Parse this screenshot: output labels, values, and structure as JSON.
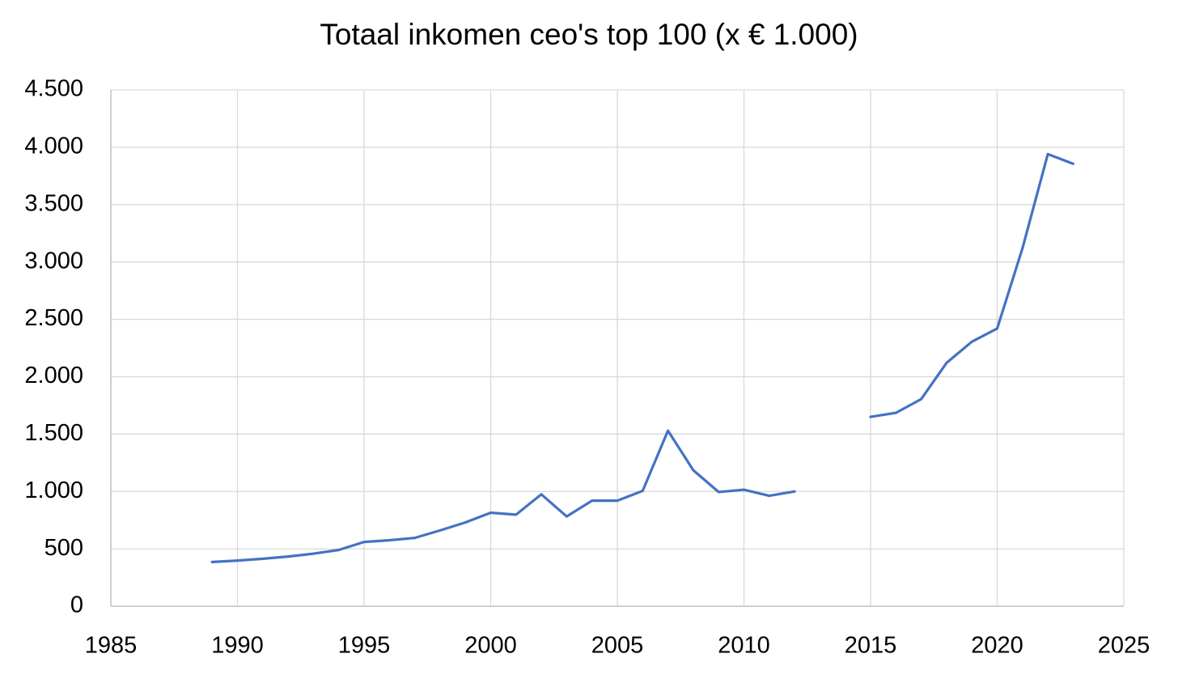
{
  "chart_data": {
    "type": "line",
    "title": "Totaal inkomen ceo's top 100 (x € 1.000)",
    "xlabel": "",
    "ylabel": "",
    "xlim": [
      1985,
      2025
    ],
    "ylim": [
      0,
      4500
    ],
    "x_ticks": [
      1985,
      1990,
      1995,
      2000,
      2005,
      2010,
      2015,
      2020,
      2025
    ],
    "x_tick_labels": [
      "1985",
      "1990",
      "1995",
      "2000",
      "2005",
      "2010",
      "2015",
      "2020",
      "2025"
    ],
    "y_ticks": [
      0,
      500,
      1000,
      1500,
      2000,
      2500,
      3000,
      3500,
      4000,
      4500
    ],
    "y_tick_labels": [
      "0",
      "500",
      "1.000",
      "1.500",
      "2.000",
      "2.500",
      "3.000",
      "3.500",
      "4.000",
      "4.500"
    ],
    "grid": true,
    "legend": "none",
    "colors": {
      "line": "#4472C4",
      "grid": "#D9D9D9",
      "axis": "#BFBFBF",
      "text": "#000000"
    },
    "series": [
      {
        "segments": [
          {
            "x": [
              1989,
              1990,
              1991,
              1992,
              1993,
              1994,
              1995,
              1996,
              1997,
              1998,
              1999,
              2000,
              2001,
              2002,
              2003,
              2004,
              2005,
              2006,
              2007,
              2008,
              2009,
              2010,
              2011,
              2012
            ],
            "y": [
              385,
              398,
              413,
              433,
              458,
              490,
              560,
              575,
              595,
              660,
              730,
              815,
              798,
              975,
              782,
              920,
              920,
              1005,
              1530,
              1185,
              995,
              1015,
              962,
              1000
            ]
          },
          {
            "x": [
              2015,
              2016,
              2017,
              2018,
              2019,
              2020,
              2021,
              2022,
              2023
            ],
            "y": [
              1650,
              1685,
              1805,
              2120,
              2305,
              2420,
              3120,
              3940,
              3855
            ]
          }
        ]
      }
    ]
  }
}
